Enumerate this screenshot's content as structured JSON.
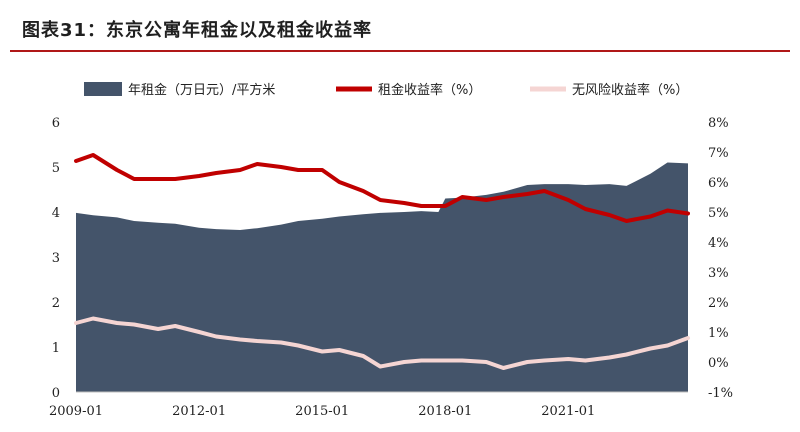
{
  "title": "图表31：东京公寓年租金以及租金收益率",
  "colors": {
    "rent_area": "#44546a",
    "yield_line": "#c00000",
    "riskfree_line": "#f5d5d3",
    "title_rule": "#b01818"
  },
  "chart_data": {
    "type": "area",
    "x_tick_labels": [
      "2009-01",
      "2012-01",
      "2015-01",
      "2018-01",
      "2021-01"
    ],
    "x_range": [
      "2009-01",
      "2023-12"
    ],
    "left_axis": {
      "ticks": [
        "0",
        "1",
        "2",
        "3",
        "4",
        "5",
        "6"
      ],
      "ylim": [
        0,
        6
      ]
    },
    "right_axis": {
      "ticks": [
        "-1%",
        "0%",
        "1%",
        "2%",
        "3%",
        "4%",
        "5%",
        "6%",
        "7%",
        "8%"
      ],
      "ylim": [
        -1,
        8
      ]
    },
    "legend_position": "top",
    "grid": false,
    "series": [
      {
        "name": "年租金（万日元）/平方米",
        "type": "area",
        "axis": "left",
        "points": [
          [
            "2009-01",
            3.98
          ],
          [
            "2009-06",
            3.93
          ],
          [
            "2010-01",
            3.88
          ],
          [
            "2010-06",
            3.8
          ],
          [
            "2011-01",
            3.76
          ],
          [
            "2011-06",
            3.74
          ],
          [
            "2012-01",
            3.65
          ],
          [
            "2012-06",
            3.62
          ],
          [
            "2013-01",
            3.6
          ],
          [
            "2013-06",
            3.64
          ],
          [
            "2014-01",
            3.72
          ],
          [
            "2014-06",
            3.8
          ],
          [
            "2015-01",
            3.85
          ],
          [
            "2015-06",
            3.9
          ],
          [
            "2016-01",
            3.95
          ],
          [
            "2016-06",
            3.98
          ],
          [
            "2017-01",
            4.0
          ],
          [
            "2017-06",
            4.02
          ],
          [
            "2017-11",
            4.0
          ],
          [
            "2018-01",
            4.3
          ],
          [
            "2018-06",
            4.32
          ],
          [
            "2019-01",
            4.38
          ],
          [
            "2019-06",
            4.45
          ],
          [
            "2020-01",
            4.6
          ],
          [
            "2020-06",
            4.62
          ],
          [
            "2021-01",
            4.62
          ],
          [
            "2021-06",
            4.6
          ],
          [
            "2022-01",
            4.62
          ],
          [
            "2022-06",
            4.58
          ],
          [
            "2023-01",
            4.85
          ],
          [
            "2023-06",
            5.1
          ],
          [
            "2023-12",
            5.08
          ]
        ]
      },
      {
        "name": "租金收益率（%）",
        "type": "line",
        "axis": "right",
        "points": [
          [
            "2009-01",
            6.7
          ],
          [
            "2009-06",
            6.9
          ],
          [
            "2010-01",
            6.4
          ],
          [
            "2010-06",
            6.1
          ],
          [
            "2011-01",
            6.1
          ],
          [
            "2011-06",
            6.1
          ],
          [
            "2012-01",
            6.2
          ],
          [
            "2012-06",
            6.3
          ],
          [
            "2013-01",
            6.4
          ],
          [
            "2013-06",
            6.6
          ],
          [
            "2014-01",
            6.5
          ],
          [
            "2014-06",
            6.4
          ],
          [
            "2015-01",
            6.4
          ],
          [
            "2015-06",
            6.0
          ],
          [
            "2016-01",
            5.7
          ],
          [
            "2016-06",
            5.4
          ],
          [
            "2017-01",
            5.3
          ],
          [
            "2017-06",
            5.2
          ],
          [
            "2018-01",
            5.2
          ],
          [
            "2018-06",
            5.5
          ],
          [
            "2019-01",
            5.4
          ],
          [
            "2019-06",
            5.5
          ],
          [
            "2020-01",
            5.6
          ],
          [
            "2020-06",
            5.7
          ],
          [
            "2021-01",
            5.4
          ],
          [
            "2021-06",
            5.1
          ],
          [
            "2022-01",
            4.9
          ],
          [
            "2022-06",
            4.7
          ],
          [
            "2023-01",
            4.85
          ],
          [
            "2023-06",
            5.05
          ],
          [
            "2023-12",
            4.95
          ]
        ]
      },
      {
        "name": "无风险收益率（%）",
        "type": "line",
        "axis": "right",
        "points": [
          [
            "2009-01",
            1.3
          ],
          [
            "2009-06",
            1.45
          ],
          [
            "2010-01",
            1.3
          ],
          [
            "2010-06",
            1.25
          ],
          [
            "2011-01",
            1.1
          ],
          [
            "2011-06",
            1.2
          ],
          [
            "2012-01",
            1.0
          ],
          [
            "2012-06",
            0.85
          ],
          [
            "2013-01",
            0.75
          ],
          [
            "2013-06",
            0.7
          ],
          [
            "2014-01",
            0.65
          ],
          [
            "2014-06",
            0.55
          ],
          [
            "2015-01",
            0.35
          ],
          [
            "2015-06",
            0.4
          ],
          [
            "2016-01",
            0.2
          ],
          [
            "2016-06",
            -0.15
          ],
          [
            "2017-01",
            0.0
          ],
          [
            "2017-06",
            0.05
          ],
          [
            "2018-01",
            0.05
          ],
          [
            "2018-06",
            0.05
          ],
          [
            "2019-01",
            0.0
          ],
          [
            "2019-06",
            -0.2
          ],
          [
            "2020-01",
            0.0
          ],
          [
            "2020-06",
            0.05
          ],
          [
            "2021-01",
            0.1
          ],
          [
            "2021-06",
            0.05
          ],
          [
            "2022-01",
            0.15
          ],
          [
            "2022-06",
            0.25
          ],
          [
            "2023-01",
            0.45
          ],
          [
            "2023-06",
            0.55
          ],
          [
            "2023-12",
            0.8
          ]
        ]
      }
    ]
  }
}
